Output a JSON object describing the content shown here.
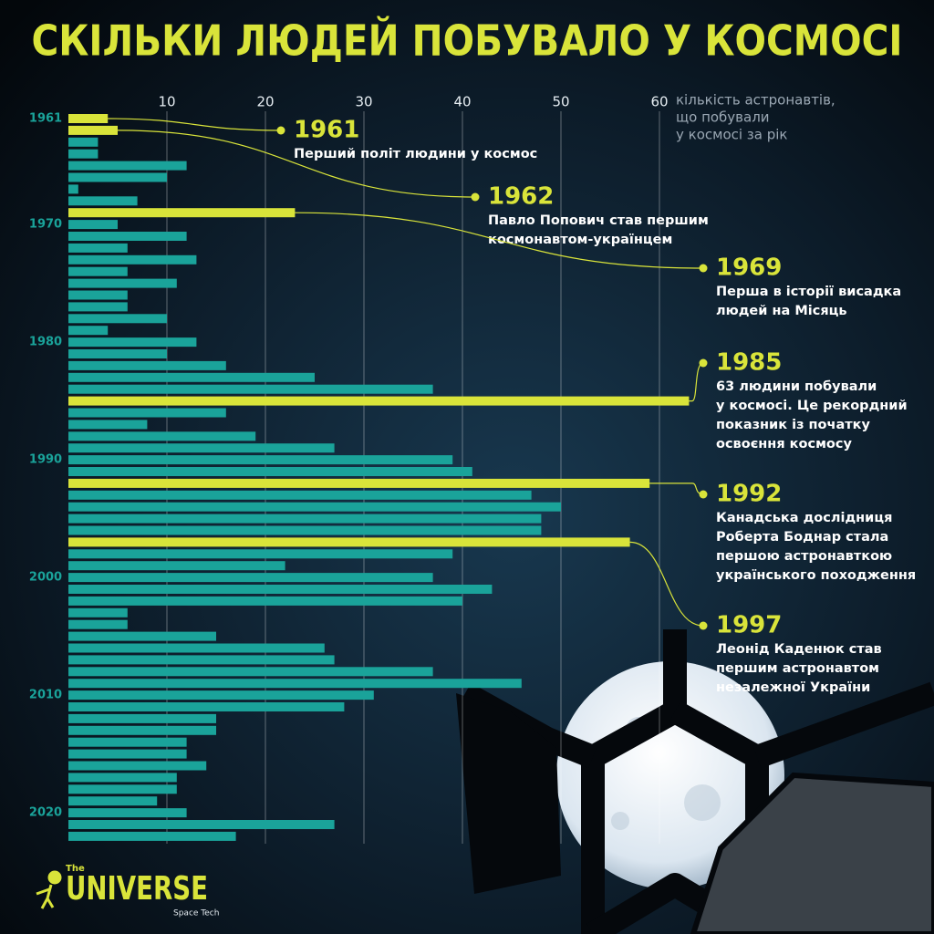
{
  "chart_data": {
    "type": "barh",
    "title": "СКІЛЬКИ ЛЮДЕЙ ПОБУВАЛО У КОСМОСІ",
    "x_label": [
      "кількість астронавтів,",
      "що побували",
      "у космосі за рік"
    ],
    "categories": [
      "1961",
      null,
      null,
      null,
      null,
      null,
      null,
      null,
      null,
      "1970",
      null,
      null,
      null,
      null,
      null,
      null,
      null,
      null,
      null,
      "1980",
      null,
      null,
      null,
      null,
      null,
      null,
      null,
      null,
      null,
      "1990",
      null,
      null,
      null,
      null,
      null,
      null,
      null,
      null,
      null,
      "2000",
      null,
      null,
      null,
      null,
      null,
      null,
      null,
      null,
      null,
      "2010",
      null,
      null,
      null,
      null,
      null,
      null,
      null,
      null,
      null,
      "2020",
      null,
      null
    ],
    "values": [
      4,
      5,
      3,
      3,
      12,
      10,
      1,
      7,
      23,
      5,
      12,
      6,
      13,
      6,
      11,
      6,
      6,
      10,
      4,
      13,
      10,
      16,
      25,
      37,
      63,
      16,
      8,
      19,
      27,
      39,
      41,
      59,
      47,
      50,
      48,
      48,
      57,
      39,
      22,
      37,
      43,
      40,
      6,
      6,
      15,
      26,
      27,
      37,
      46,
      31,
      28,
      15,
      15,
      12,
      12,
      14,
      11,
      11,
      9,
      12,
      27,
      17
    ],
    "color": "#1aa39a",
    "highlight_color": "#d9e43a",
    "xlim": [
      0,
      65
    ],
    "xticks": [
      10,
      20,
      30,
      40,
      50,
      60
    ],
    "grid": true,
    "annotations": [
      {
        "title": "1961",
        "text": [
          "Перший політ людини у космос"
        ]
      },
      {
        "title": "1962",
        "text": [
          "Павло Попович став першим",
          "космонавтом-українцем"
        ]
      },
      {
        "title": "1969",
        "text": [
          "Перша в історії висадка",
          "людей на Місяць"
        ]
      },
      {
        "title": "1985",
        "text": [
          "63 людини побували",
          "у космосі. Це рекордний",
          "показник із початку",
          "освоєння космосу"
        ]
      },
      {
        "title": "1992",
        "text": [
          "Канадська дослідниця",
          "Роберта Боднар стала",
          "першою астронавткою",
          "українського походження"
        ]
      },
      {
        "title": "1997",
        "text": [
          "Леонід Каденюк став",
          "першим астронавтом",
          "незалежної України"
        ]
      }
    ]
  },
  "logo": {
    "small": "The",
    "name": "UNIVERSE",
    "sub": "Space Tech"
  }
}
